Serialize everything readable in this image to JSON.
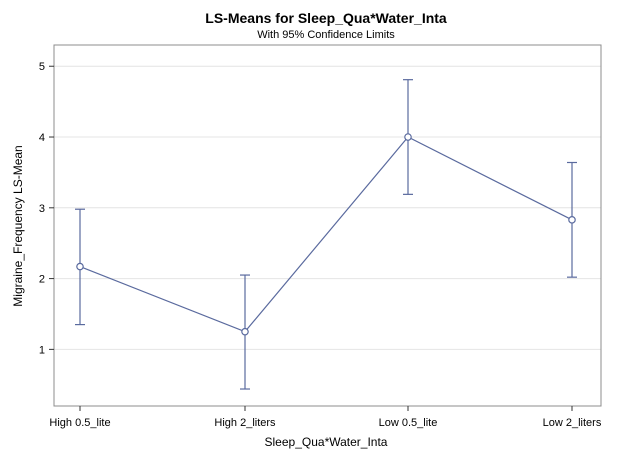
{
  "chart_data": {
    "type": "line",
    "title": "LS-Means for Sleep_Qua*Water_Inta",
    "subtitle": "With 95% Confidence Limits",
    "xlabel": "Sleep_Qua*Water_Inta",
    "ylabel": "Migraine_Frequency LS-Mean",
    "categories": [
      "High 0.5_lite",
      "High 2_liters",
      "Low 0.5_lite",
      "Low 2_liters"
    ],
    "series": [
      {
        "values": [
          2.17,
          1.25,
          4.0,
          2.83
        ],
        "lower": [
          1.35,
          0.44,
          3.19,
          2.02
        ],
        "upper": [
          2.98,
          2.05,
          4.81,
          3.64
        ]
      }
    ],
    "ylim": [
      0.2,
      5.3
    ],
    "yticks": [
      1,
      2,
      3,
      4,
      5
    ],
    "grid": true,
    "legend": "none",
    "colors": {
      "series": "#5a6a9e",
      "grid": "#e4e4e4",
      "frame": "#8c8c8c"
    }
  }
}
